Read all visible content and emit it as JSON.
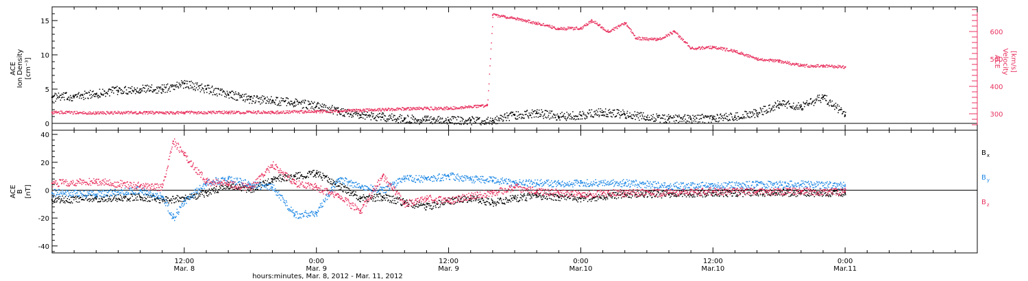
{
  "chart_data": {
    "type": "scatter",
    "x_range": [
      "2012-03-08 00:00",
      "2012-03-11 12:00"
    ],
    "x_ticks": [
      {
        "time": "2012-03-08 12:00",
        "label": "12:00",
        "sublabel": "Mar. 8"
      },
      {
        "time": "2012-03-09 00:00",
        "label": "0:00",
        "sublabel": "Mar. 9"
      },
      {
        "time": "2012-03-09 12:00",
        "label": "12:00",
        "sublabel": "Mar. 9"
      },
      {
        "time": "2012-03-10 00:00",
        "label": "0:00",
        "sublabel": "Mar.10"
      },
      {
        "time": "2012-03-10 12:00",
        "label": "12:00",
        "sublabel": "Mar.10"
      },
      {
        "time": "2012-03-11 00:00",
        "label": "0:00",
        "sublabel": "Mar.11"
      }
    ],
    "xlabel": "hours:minutes, Mar.  8, 2012 - Mar. 11, 2012",
    "panels": [
      {
        "name": "plasma",
        "ylabel_lines": [
          "ACE",
          "Ion Density",
          "[cm⁻³]"
        ],
        "ylim": [
          -1,
          17
        ],
        "yticks": [
          0,
          5,
          10,
          15
        ],
        "right_ylabel_lines": [
          "ACE",
          "Velocity",
          "[km/s]"
        ],
        "right_ylim": [
          240,
          690
        ],
        "right_yticks": [
          300,
          400,
          500,
          600
        ],
        "series": [
          {
            "name": "density",
            "axis": "left",
            "color": "#000000",
            "points": [
              [
                "2012-03-08 00:00",
                3.8
              ],
              [
                "2012-03-08 02:00",
                3.9
              ],
              [
                "2012-03-08 04:00",
                4.3
              ],
              [
                "2012-03-08 06:00",
                4.8
              ],
              [
                "2012-03-08 08:00",
                5.0
              ],
              [
                "2012-03-08 10:00",
                5.0
              ],
              [
                "2012-03-08 12:00",
                5.8
              ],
              [
                "2012-03-08 14:00",
                5.0
              ],
              [
                "2012-03-08 16:00",
                4.2
              ],
              [
                "2012-03-08 18:00",
                3.5
              ],
              [
                "2012-03-08 20:00",
                3.3
              ],
              [
                "2012-03-08 22:00",
                3.0
              ],
              [
                "2012-03-09 00:00",
                2.5
              ],
              [
                "2012-03-09 02:00",
                1.8
              ],
              [
                "2012-03-09 04:00",
                1.2
              ],
              [
                "2012-03-09 06:00",
                0.9
              ],
              [
                "2012-03-09 08:00",
                0.6
              ],
              [
                "2012-03-09 10:00",
                0.5
              ],
              [
                "2012-03-09 12:00",
                0.5
              ],
              [
                "2012-03-09 14:00",
                0.4
              ],
              [
                "2012-03-09 16:00",
                0.4
              ],
              [
                "2012-03-09 18:00",
                1.2
              ],
              [
                "2012-03-09 20:00",
                1.5
              ],
              [
                "2012-03-09 22:00",
                1.0
              ],
              [
                "2012-03-10 00:00",
                1.2
              ],
              [
                "2012-03-10 02:00",
                1.6
              ],
              [
                "2012-03-10 04:00",
                1.3
              ],
              [
                "2012-03-10 06:00",
                0.9
              ],
              [
                "2012-03-10 08:00",
                0.7
              ],
              [
                "2012-03-10 10:00",
                0.6
              ],
              [
                "2012-03-10 12:00",
                0.8
              ],
              [
                "2012-03-10 14:00",
                0.9
              ],
              [
                "2012-03-10 16:00",
                1.5
              ],
              [
                "2012-03-10 18:00",
                2.8
              ],
              [
                "2012-03-10 20:00",
                2.5
              ],
              [
                "2012-03-10 22:00",
                3.8
              ],
              [
                "2012-03-11 00:00",
                1.2
              ]
            ]
          },
          {
            "name": "velocity",
            "axis": "right",
            "color": "#e8325f",
            "points": [
              [
                "2012-03-08 00:00",
                305
              ],
              [
                "2012-03-08 04:00",
                303
              ],
              [
                "2012-03-08 08:00",
                304
              ],
              [
                "2012-03-08 12:00",
                304
              ],
              [
                "2012-03-08 16:00",
                305
              ],
              [
                "2012-03-08 20:00",
                305
              ],
              [
                "2012-03-09 00:00",
                308
              ],
              [
                "2012-03-09 04:00",
                312
              ],
              [
                "2012-03-09 08:00",
                318
              ],
              [
                "2012-03-09 12:00",
                320
              ],
              [
                "2012-03-09 15:30",
                330
              ],
              [
                "2012-03-09 16:00",
                660
              ],
              [
                "2012-03-09 18:00",
                648
              ],
              [
                "2012-03-09 20:00",
                630
              ],
              [
                "2012-03-09 22:00",
                610
              ],
              [
                "2012-03-10 00:00",
                612
              ],
              [
                "2012-03-10 01:00",
                640
              ],
              [
                "2012-03-10 02:30",
                598
              ],
              [
                "2012-03-10 04:00",
                632
              ],
              [
                "2012-03-10 05:00",
                575
              ],
              [
                "2012-03-10 07:00",
                570
              ],
              [
                "2012-03-10 08:30",
                600
              ],
              [
                "2012-03-10 10:00",
                538
              ],
              [
                "2012-03-10 12:00",
                542
              ],
              [
                "2012-03-10 14:00",
                528
              ],
              [
                "2012-03-10 16:00",
                498
              ],
              [
                "2012-03-10 18:00",
                492
              ],
              [
                "2012-03-10 20:00",
                475
              ],
              [
                "2012-03-10 22:00",
                474
              ],
              [
                "2012-03-11 00:00",
                470
              ]
            ]
          }
        ]
      },
      {
        "name": "field",
        "ylabel_lines": [
          "ACE",
          "B",
          "[nT]"
        ],
        "ylim": [
          -45,
          43
        ],
        "yticks": [
          -40,
          -20,
          0,
          20,
          40
        ],
        "series": [
          {
            "name": "Bx",
            "color": "#000000",
            "points": [
              [
                "2012-03-08 00:00",
                -7
              ],
              [
                "2012-03-08 04:00",
                -6
              ],
              [
                "2012-03-08 08:00",
                -5
              ],
              [
                "2012-03-08 10:00",
                -7
              ],
              [
                "2012-03-08 12:00",
                -6
              ],
              [
                "2012-03-08 14:00",
                -2
              ],
              [
                "2012-03-08 16:00",
                3
              ],
              [
                "2012-03-08 18:00",
                0
              ],
              [
                "2012-03-08 20:00",
                8
              ],
              [
                "2012-03-08 22:00",
                10
              ],
              [
                "2012-03-09 00:00",
                12
              ],
              [
                "2012-03-09 02:00",
                3
              ],
              [
                "2012-03-09 04:00",
                -6
              ],
              [
                "2012-03-09 06:00",
                -5
              ],
              [
                "2012-03-09 08:00",
                -9
              ],
              [
                "2012-03-09 10:00",
                -12
              ],
              [
                "2012-03-09 12:00",
                -8
              ],
              [
                "2012-03-09 14:00",
                -6
              ],
              [
                "2012-03-09 16:00",
                -9
              ],
              [
                "2012-03-09 18:00",
                -6
              ],
              [
                "2012-03-09 20:00",
                -4
              ],
              [
                "2012-03-09 22:00",
                -5
              ],
              [
                "2012-03-10 00:00",
                -6
              ],
              [
                "2012-03-10 04:00",
                -3
              ],
              [
                "2012-03-10 08:00",
                -3
              ],
              [
                "2012-03-10 12:00",
                -2
              ],
              [
                "2012-03-10 16:00",
                -2
              ],
              [
                "2012-03-10 20:00",
                -2
              ],
              [
                "2012-03-11 00:00",
                -2
              ]
            ]
          },
          {
            "name": "By",
            "color": "#1e88e5",
            "points": [
              [
                "2012-03-08 00:00",
                -2
              ],
              [
                "2012-03-08 04:00",
                -3
              ],
              [
                "2012-03-08 08:00",
                0
              ],
              [
                "2012-03-08 10:00",
                -5
              ],
              [
                "2012-03-08 11:00",
                -20
              ],
              [
                "2012-03-08 12:00",
                -8
              ],
              [
                "2012-03-08 14:00",
                5
              ],
              [
                "2012-03-08 16:00",
                8
              ],
              [
                "2012-03-08 18:00",
                4
              ],
              [
                "2012-03-08 20:00",
                2
              ],
              [
                "2012-03-08 22:00",
                -18
              ],
              [
                "2012-03-09 00:00",
                -16
              ],
              [
                "2012-03-09 02:00",
                8
              ],
              [
                "2012-03-09 04:00",
                2
              ],
              [
                "2012-03-09 06:00",
                0
              ],
              [
                "2012-03-09 08:00",
                8
              ],
              [
                "2012-03-09 10:00",
                8
              ],
              [
                "2012-03-09 12:00",
                10
              ],
              [
                "2012-03-09 14:00",
                8
              ],
              [
                "2012-03-09 16:00",
                7
              ],
              [
                "2012-03-09 18:00",
                5
              ],
              [
                "2012-03-09 20:00",
                5
              ],
              [
                "2012-03-09 22:00",
                5
              ],
              [
                "2012-03-10 00:00",
                5
              ],
              [
                "2012-03-10 04:00",
                5
              ],
              [
                "2012-03-10 08:00",
                3
              ],
              [
                "2012-03-10 12:00",
                3
              ],
              [
                "2012-03-10 16:00",
                4
              ],
              [
                "2012-03-10 20:00",
                4
              ],
              [
                "2012-03-11 00:00",
                3
              ]
            ]
          },
          {
            "name": "Bz",
            "color": "#e8325f",
            "points": [
              [
                "2012-03-08 00:00",
                5
              ],
              [
                "2012-03-08 04:00",
                6
              ],
              [
                "2012-03-08 08:00",
                3
              ],
              [
                "2012-03-08 10:00",
                2
              ],
              [
                "2012-03-08 11:00",
                35
              ],
              [
                "2012-03-08 12:00",
                25
              ],
              [
                "2012-03-08 14:00",
                6
              ],
              [
                "2012-03-08 16:00",
                4
              ],
              [
                "2012-03-08 18:00",
                2
              ],
              [
                "2012-03-08 20:00",
                18
              ],
              [
                "2012-03-08 22:00",
                5
              ],
              [
                "2012-03-09 00:00",
                2
              ],
              [
                "2012-03-09 02:00",
                -5
              ],
              [
                "2012-03-09 04:00",
                -15
              ],
              [
                "2012-03-09 06:00",
                10
              ],
              [
                "2012-03-09 08:00",
                -10
              ],
              [
                "2012-03-09 10:00",
                -6
              ],
              [
                "2012-03-09 12:00",
                -8
              ],
              [
                "2012-03-09 14:00",
                -4
              ],
              [
                "2012-03-09 16:00",
                -2
              ],
              [
                "2012-03-09 18:00",
                2
              ],
              [
                "2012-03-09 20:00",
                -1
              ],
              [
                "2012-03-09 22:00",
                -2
              ],
              [
                "2012-03-10 00:00",
                -3
              ],
              [
                "2012-03-10 04:00",
                -2
              ],
              [
                "2012-03-10 08:00",
                -2
              ],
              [
                "2012-03-10 12:00",
                -1
              ],
              [
                "2012-03-10 16:00",
                -1
              ],
              [
                "2012-03-10 20:00",
                -1
              ],
              [
                "2012-03-11 00:00",
                -1
              ]
            ]
          }
        ]
      }
    ],
    "legend": {
      "placement": "right",
      "entries": [
        {
          "base": "B",
          "sub": "x",
          "color": "#000000"
        },
        {
          "base": "B",
          "sub": "y",
          "color": "#1e88e5"
        },
        {
          "base": "B",
          "sub": "z",
          "color": "#e8325f"
        }
      ]
    }
  }
}
